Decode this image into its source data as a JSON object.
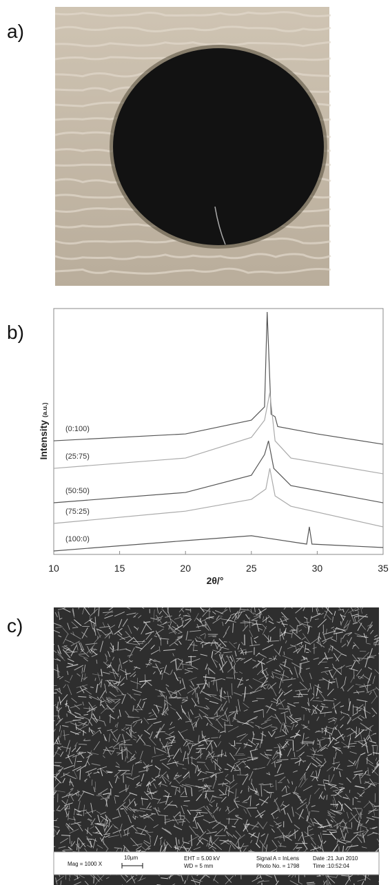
{
  "labels": [
    "a)",
    "b)",
    "c)"
  ],
  "chart_data": {
    "type": "line",
    "ylabel": "Intensity",
    "ylabel_unit": "(a.u.)",
    "xlabel": "2θ/°",
    "xlim": [
      10,
      35
    ],
    "xticks": [
      10,
      15,
      20,
      25,
      30,
      35
    ],
    "ylim": [
      0,
      100
    ],
    "series": [
      {
        "name": "(0:100)",
        "color": "#555555",
        "x": [
          10,
          20,
          25,
          26,
          26.2,
          26.5,
          26.8,
          27,
          30,
          35
        ],
        "values": [
          46.2,
          49,
          54.6,
          60,
          98.6,
          57,
          56,
          52,
          49,
          44.8
        ]
      },
      {
        "name": "(25:75)",
        "color": "#aaaaaa",
        "x": [
          10,
          20,
          25,
          26,
          26.4,
          26.8,
          28,
          35
        ],
        "values": [
          35,
          39.2,
          47.6,
          54.6,
          65.8,
          46.2,
          39.2,
          32.8
        ]
      },
      {
        "name": "(50:50)",
        "color": "#555555",
        "x": [
          10,
          20,
          25,
          26,
          26.3,
          26.7,
          28,
          35
        ],
        "values": [
          21,
          25.2,
          32.2,
          40.6,
          46.2,
          35,
          28,
          21
        ]
      },
      {
        "name": "(75:25)",
        "color": "#aaaaaa",
        "x": [
          10,
          20,
          25,
          26.1,
          26.4,
          26.8,
          28,
          35
        ],
        "values": [
          12.6,
          17.6,
          22.4,
          26.6,
          35,
          23.8,
          19.6,
          11.2
        ]
      },
      {
        "name": "(100:0)",
        "color": "#555555",
        "x": [
          10,
          20,
          25,
          29.2,
          29.4,
          29.6,
          35
        ],
        "values": [
          1.4,
          5.6,
          7.6,
          4.2,
          11.2,
          4.2,
          2.8
        ]
      }
    ]
  },
  "sem_info": {
    "mag": "Mag =  1000 X",
    "scale": "10µm",
    "eht": "EHT =  5.00 kV",
    "wd": "WD =    5 mm",
    "signal": "Signal A = InLens",
    "photo": "Photo No. = 1798",
    "date": "Date :21 Jun 2010",
    "time": "Time :10:52:04"
  }
}
